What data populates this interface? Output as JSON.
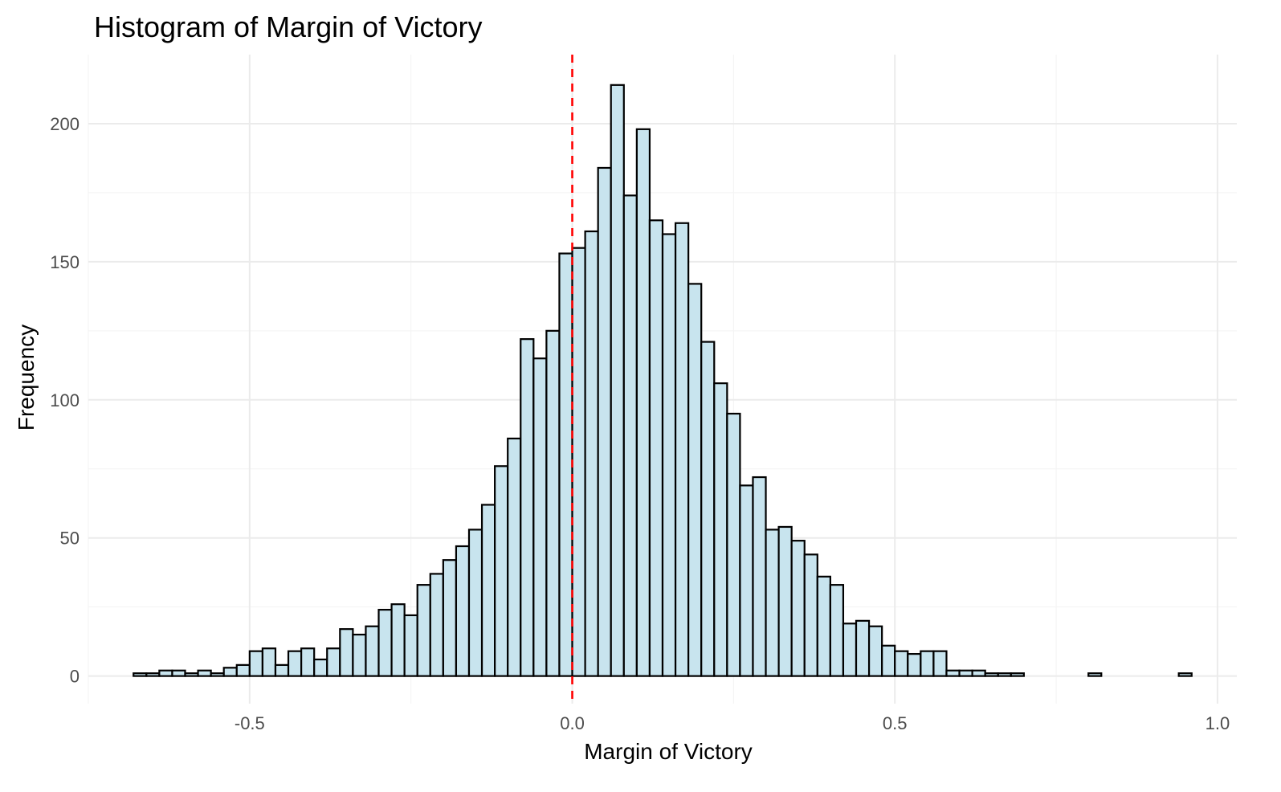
{
  "chart_data": {
    "type": "bar",
    "title": "Histogram of Margin of Victory",
    "xlabel": "Margin of Victory",
    "ylabel": "Frequency",
    "xlim": [
      -0.75,
      1.03
    ],
    "ylim": [
      -10,
      225
    ],
    "x_ticks": [
      -0.5,
      0.0,
      0.5,
      1.0
    ],
    "x_tick_labels": [
      "-0.5",
      "0.0",
      "0.5",
      "1.0"
    ],
    "y_ticks": [
      0,
      50,
      100,
      150,
      200
    ],
    "y_tick_labels": [
      "0",
      "50",
      "100",
      "150",
      "200"
    ],
    "grid": true,
    "bin_width": 0.02,
    "bin_start": -0.68,
    "values": [
      1,
      1,
      2,
      2,
      1,
      2,
      1,
      3,
      4,
      9,
      10,
      4,
      9,
      10,
      6,
      10,
      17,
      15,
      18,
      24,
      26,
      22,
      33,
      37,
      42,
      47,
      53,
      62,
      76,
      86,
      122,
      115,
      125,
      153,
      155,
      161,
      184,
      214,
      174,
      198,
      165,
      160,
      164,
      142,
      121,
      106,
      95,
      69,
      72,
      53,
      54,
      49,
      44,
      36,
      33,
      19,
      20,
      18,
      11,
      9,
      8,
      9,
      9,
      2,
      2,
      2,
      1,
      1,
      1,
      0,
      0,
      0,
      0,
      0,
      1,
      0,
      0,
      0,
      0,
      0,
      0,
      1
    ],
    "reference_line": {
      "x": 0.0,
      "color": "#ff0000",
      "style": "dashed"
    },
    "bar_fill": "#c8e4ee",
    "bar_outline": "#000000"
  }
}
